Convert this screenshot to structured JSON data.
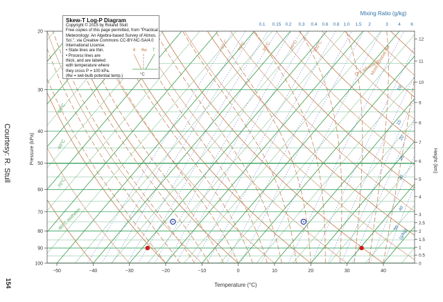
{
  "side": {
    "courtesy": "Courtesy: R. Stull",
    "page_number": "154"
  },
  "legend": {
    "title": "Skew-T  Log-P  Diagram",
    "lines": [
      "Copyright © 2015 by Roland Stull.",
      "Free copies of this page permitted, from \"Practical",
      "Meteorology: An Algebra-based Survey of Atmos.",
      "Sci.\", via Creative Commons CC-BY-NC-SA/4.0",
      "International License.",
      "• State lines are thin.",
      "• Process lines are",
      "thick, and are labeled",
      "with temperature where",
      "they cross P = 100 kPa.",
      "(θw = wet-bulb potential temp.)"
    ],
    "key_theta": "θ",
    "key_thetaw": "θw",
    "key_t": "T",
    "key_unit": "°C"
  },
  "colors": {
    "isotherm": "#4aa35a",
    "isobar": "#3aa060",
    "dry_adiabat": "#c8875a",
    "moist_adiabat": "#c8875a",
    "mixing_ratio": "#6a78c8",
    "axis_text": "#333333",
    "mixing_text": "#3070a8",
    "point_red": "#d21a1a",
    "point_blue": "#2a3aa8"
  },
  "chart_data": {
    "type": "scatter",
    "title": "",
    "xlabel": "Temperature (°C)",
    "ylabel": "Pressure (kPa)",
    "y2label": "Height (km)",
    "toplabel": "Mixing Ratio (g/kg)",
    "y_scale": "log",
    "xlim": [
      -50,
      50
    ],
    "ylim": [
      100,
      20
    ],
    "x_ticks": [
      -50,
      -40,
      -30,
      -20,
      -10,
      0,
      10,
      20,
      30,
      40
    ],
    "y_ticks": [
      20,
      30,
      40,
      50,
      60,
      70,
      80,
      90,
      100
    ],
    "height_ticks": [
      0,
      0.5,
      1,
      1.5,
      2,
      2.5,
      3,
      4,
      5,
      6,
      7,
      8,
      9,
      10,
      11,
      12
    ],
    "height_tick_pressures": [
      100,
      94.5,
      89.6,
      84.7,
      80.0,
      75.5,
      71.2,
      63.0,
      55.8,
      49.2,
      43.2,
      37.7,
      32.8,
      28.5,
      24.6,
      21.1
    ],
    "mixing_ratio_labels": [
      "0.1",
      "0.15",
      "0.2",
      "0.3",
      "0.4",
      "0.6",
      "0.8",
      "1.0",
      "1.5",
      "2",
      "3",
      "4",
      "6"
    ],
    "mixing_ratio_right_labels": [
      "10",
      "15",
      "20",
      "25",
      "30",
      "40",
      "50",
      "(g/kg)"
    ],
    "annotations": [
      "-50°C",
      "-60°C",
      "-70°C",
      "-80°C isotherm",
      "Moist adiabat θw",
      "Dry adiabat θ",
      "60°C",
      "70°C",
      "80°C",
      "90°C",
      "100°C"
    ],
    "series": [
      {
        "name": "",
        "points": [
          {
            "T": -25,
            "P": 90
          },
          {
            "T": 34,
            "P": 90
          }
        ],
        "marker": "filled-red-dot"
      },
      {
        "name": "",
        "points": [
          {
            "T": -18,
            "P": 75
          },
          {
            "T": 18,
            "P": 75
          }
        ],
        "marker": "open-blue-circle"
      }
    ]
  }
}
